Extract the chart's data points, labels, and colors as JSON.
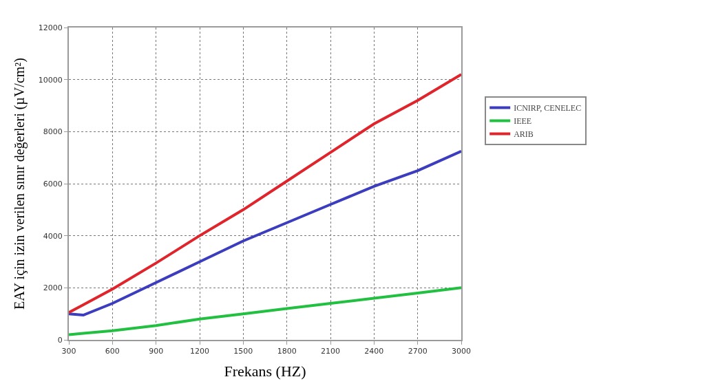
{
  "chart_data": {
    "type": "line",
    "xlabel": "Frekans (HZ)",
    "ylabel": "EAY için izin verilen sınır değerleri (µV/cm²)",
    "x": [
      300,
      400,
      600,
      900,
      1200,
      1500,
      1800,
      2100,
      2400,
      2700,
      3000
    ],
    "series": [
      {
        "name": "ICNIRP, CENELEC",
        "color": "#3c3cbe",
        "values": [
          1000,
          950,
          1400,
          2200,
          3000,
          3800,
          4500,
          5200,
          5900,
          6500,
          7250
        ]
      },
      {
        "name": "IEEE",
        "color": "#22c040",
        "values": [
          200,
          250,
          350,
          550,
          800,
          1000,
          1200,
          1400,
          1600,
          1800,
          2000
        ]
      },
      {
        "name": "ARIB",
        "color": "#e0242c",
        "values": [
          1050,
          1350,
          1950,
          2950,
          4000,
          5000,
          6100,
          7200,
          8300,
          9200,
          10200
        ]
      }
    ],
    "xlim": [
      300,
      3000
    ],
    "xticks": [
      300,
      600,
      900,
      1200,
      1500,
      1800,
      2100,
      2400,
      2700,
      3000
    ],
    "ylim": [
      0,
      12000
    ],
    "yticks": [
      0,
      2000,
      4000,
      6000,
      8000,
      10000,
      12000
    ],
    "grid": true,
    "legend": "right",
    "marker": "none",
    "line_style": "solid"
  }
}
